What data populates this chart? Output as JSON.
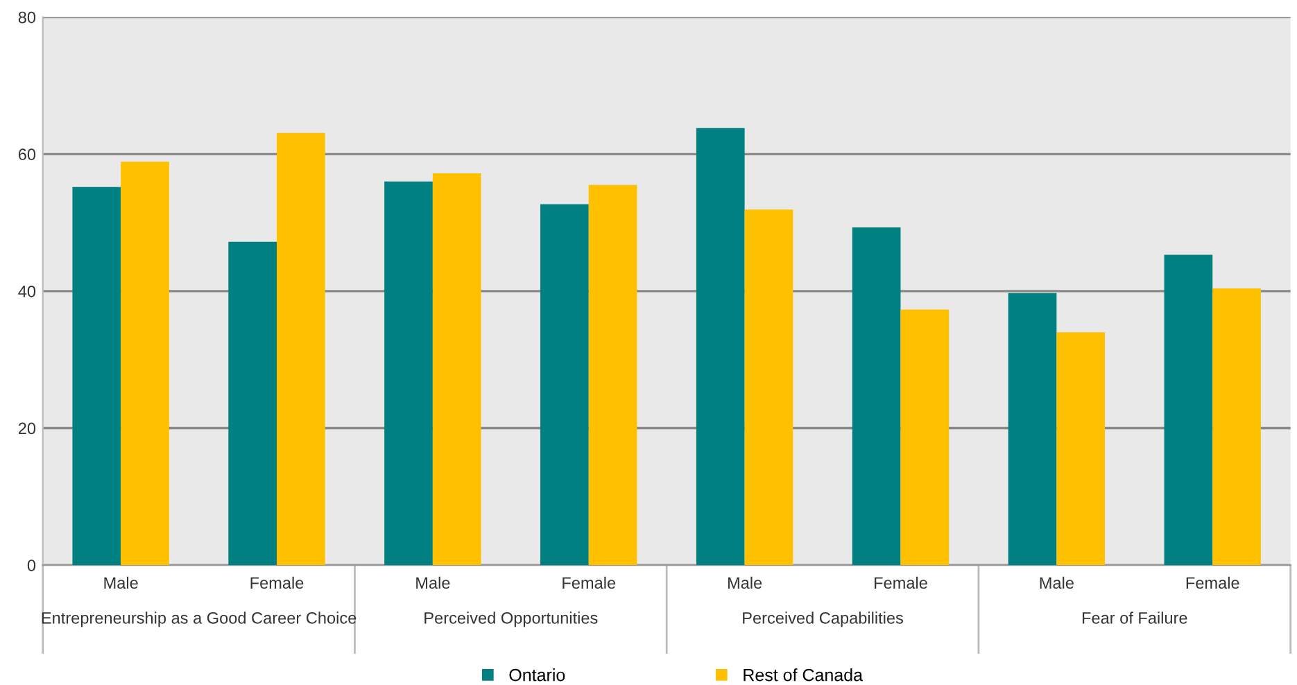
{
  "chart_data": {
    "type": "bar",
    "categories": [
      "Male",
      "Female",
      "Male",
      "Female",
      "Male",
      "Female",
      "Male",
      "Female"
    ],
    "series": [
      {
        "name": "Ontario",
        "color": "#008080",
        "values": [
          55.2,
          47.2,
          56.0,
          52.7,
          63.8,
          49.3,
          39.7,
          45.3
        ]
      },
      {
        "name": "Rest of Canada",
        "color": "#ffc000",
        "values": [
          58.9,
          63.1,
          57.2,
          55.5,
          51.9,
          37.3,
          34.0,
          40.4
        ]
      }
    ],
    "annotations": [
      "Entrepreneurship as a Good Career Choice",
      "Perceived Opportunities",
      "Perceived Capabilities",
      "Fear of Failure"
    ],
    "ylim": [
      0,
      80
    ],
    "yticks": [
      0,
      20,
      40,
      60,
      80
    ],
    "grid": "y",
    "legend": "bottom"
  }
}
